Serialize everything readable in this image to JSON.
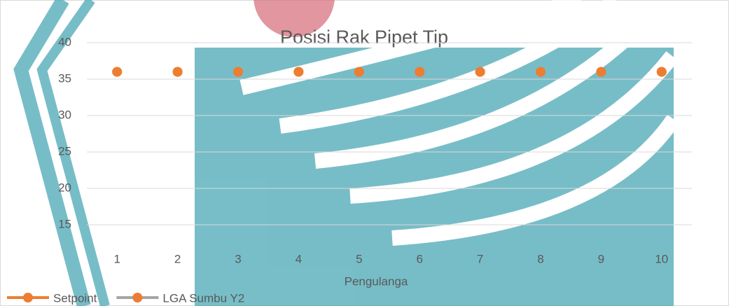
{
  "chart_data": {
    "type": "line",
    "title": "Posisi Rak Pipet Tip",
    "x_label": "Pengulanga",
    "categories": [
      1,
      2,
      3,
      4,
      5,
      6,
      7,
      8,
      9,
      10
    ],
    "series": [
      {
        "name": "Setpoint",
        "color": "#ed7d31",
        "marker_color": "#ed7d31",
        "values": [
          36,
          36,
          36,
          36,
          36,
          36,
          36,
          36,
          36,
          36
        ]
      },
      {
        "name": "LGA Sumbu Y2",
        "color": "#a5a5a5",
        "marker_color": "#ed7d31",
        "values": [
          36,
          36,
          36,
          36,
          36,
          36,
          36,
          36,
          36,
          36
        ]
      }
    ],
    "show_lines": false,
    "ylim": [
      10,
      40
    ],
    "yticks": [
      15,
      20,
      25,
      30,
      35,
      40
    ],
    "grid": true
  }
}
